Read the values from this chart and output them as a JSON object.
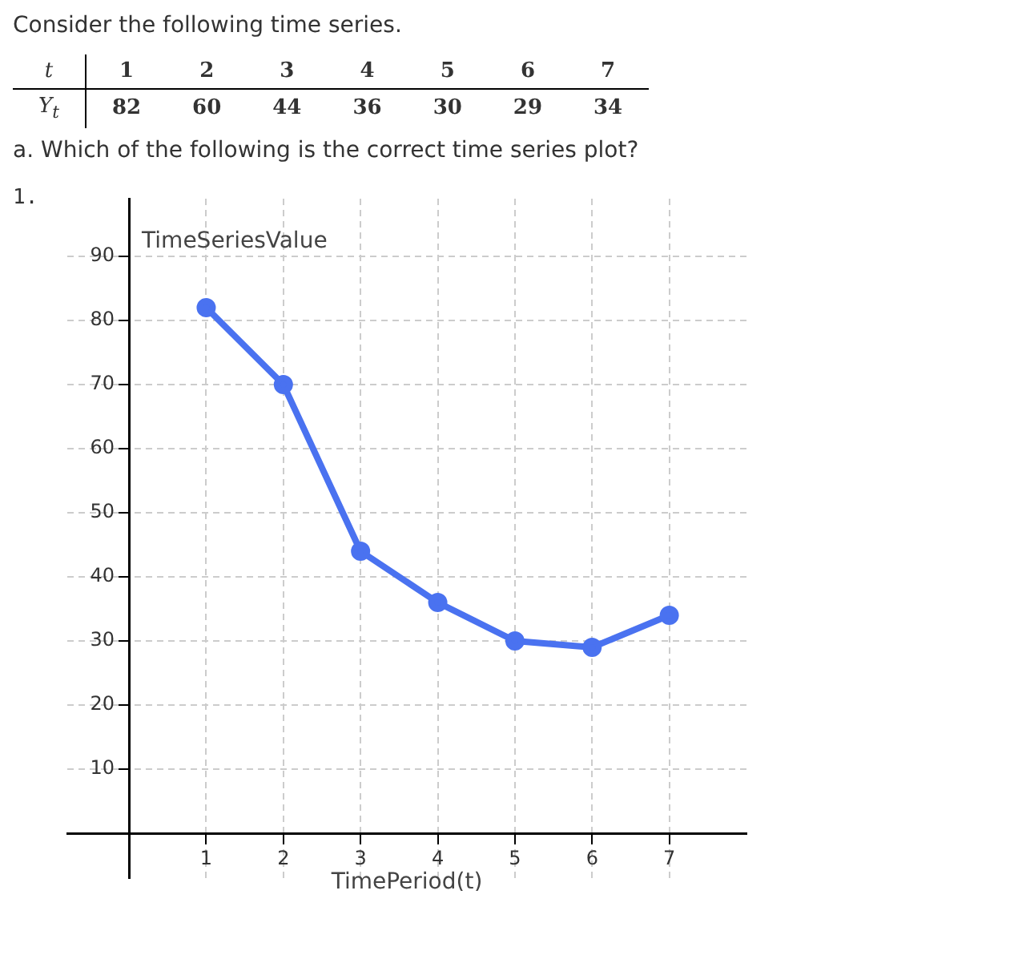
{
  "chart_data": {
    "type": "line",
    "title": "Consider the following time series.",
    "subtitle": "a. Which of the following is the correct time series plot?",
    "annotations": [
      "t 1 2 3 4 5 6 7",
      "Y$_{t}$ 82 60 44 36 30 29 34",
      "1."
    ],
    "xlabel": "TimePeriod(t)",
    "ylabel": "TimeSeriesValue",
    "x": [
      1,
      2,
      3,
      4,
      5,
      6,
      7
    ],
    "series": [
      {
        "color": "#4a72f0",
        "values": [
          82,
          70,
          44,
          36,
          30,
          29,
          34
        ]
      }
    ],
    "xlim": [
      -0.8,
      8
    ],
    "ylim": [
      -7,
      99
    ],
    "xticks": [
      1,
      2,
      3,
      4,
      5,
      6,
      7
    ],
    "yticks": [
      10,
      20,
      30,
      40,
      50,
      60,
      70,
      80,
      90
    ],
    "grid": true,
    "marker": "circle",
    "line_style": "solid",
    "legend": false
  }
}
